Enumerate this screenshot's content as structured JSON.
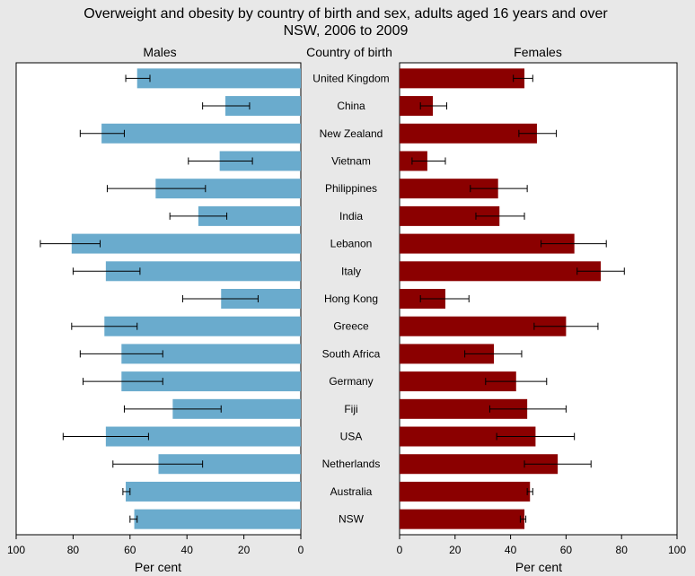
{
  "chart_data": {
    "type": "bar",
    "title": "Overweight and obesity by country of birth and sex, adults aged 16 years and over",
    "subtitle": "NSW,  2006 to 2009",
    "center_header": "Country of birth",
    "xlabel": "Per cent",
    "xlim": [
      0,
      100
    ],
    "xticks": [
      0,
      20,
      40,
      60,
      80,
      100
    ],
    "categories": [
      "United Kingdom",
      "China",
      "New Zealand",
      "Vietnam",
      "Philippines",
      "India",
      "Lebanon",
      "Italy",
      "Hong Kong",
      "Greece",
      "South Africa",
      "Germany",
      "Fiji",
      "USA",
      "Netherlands",
      "Australia",
      "NSW"
    ],
    "series": [
      {
        "name": "Males",
        "color": "#6aabcd",
        "values": [
          57.5,
          26.5,
          70,
          28.5,
          51,
          36,
          80.5,
          68.5,
          28,
          69,
          63,
          63,
          45,
          68.5,
          50,
          61.5,
          58.5
        ],
        "ci_low": [
          53,
          18,
          62,
          17,
          33.5,
          26,
          70.5,
          56.5,
          15,
          57.5,
          48.5,
          48.5,
          28,
          53.5,
          34.5,
          60,
          57.5
        ],
        "ci_high": [
          61.5,
          34.5,
          77.5,
          39.5,
          68,
          46,
          91.5,
          80,
          41.5,
          80.5,
          77.5,
          76.5,
          62,
          83.5,
          66,
          62.5,
          60
        ]
      },
      {
        "name": "Females",
        "color": "#8b0000",
        "values": [
          45,
          12,
          49.5,
          10,
          35.5,
          36,
          63,
          72.5,
          16.5,
          60,
          34,
          42,
          46,
          49,
          57,
          47,
          45
        ],
        "ci_low": [
          41,
          7.5,
          43,
          4.5,
          25.5,
          27.5,
          51,
          64,
          7.5,
          48.5,
          23.5,
          31,
          32.5,
          35,
          45,
          46,
          43.5
        ],
        "ci_high": [
          48,
          17,
          56.5,
          16.5,
          46,
          45,
          74.5,
          81,
          25,
          71.5,
          44,
          53,
          60,
          63,
          69,
          48,
          45.5
        ]
      }
    ]
  }
}
